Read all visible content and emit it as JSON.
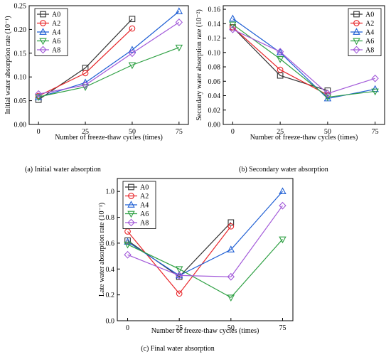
{
  "colors": {
    "A0": "#333333",
    "A2": "#e8262a",
    "A4": "#1f5fd4",
    "A6": "#2ea043",
    "A8": "#a259d9"
  },
  "chart_data": [
    {
      "type": "line",
      "caption": "(a) Initial water absorption",
      "xlabel": "Number of freeze-thaw cycles (times)",
      "ylabel": "Initial water absorption rate (10⁻¹)",
      "x": [
        0,
        25,
        50,
        75
      ],
      "xlim": [
        -5,
        80
      ],
      "ylim": [
        0,
        0.25
      ],
      "yticks": [
        0.0,
        0.05,
        0.1,
        0.15,
        0.2,
        0.25
      ],
      "ytick_labels": [
        "0.00",
        "0.05",
        "0.10",
        "0.15",
        "0.20",
        "0.25"
      ],
      "legend_position": "top-left",
      "series": [
        {
          "name": "A0",
          "values": [
            0.052,
            0.119,
            0.222,
            null
          ]
        },
        {
          "name": "A2",
          "values": [
            0.06,
            0.108,
            0.202,
            null
          ]
        },
        {
          "name": "A4",
          "values": [
            0.057,
            0.088,
            0.157,
            0.238
          ]
        },
        {
          "name": "A6",
          "values": [
            0.058,
            0.079,
            0.125,
            0.162
          ]
        },
        {
          "name": "A8",
          "values": [
            0.064,
            0.083,
            0.15,
            0.215
          ]
        }
      ]
    },
    {
      "type": "line",
      "caption": "(b) Secondary water absorption",
      "xlabel": "Number of freeze-thaw cycles (times)",
      "ylabel": "Secondary water absorption rate (10⁻²)",
      "x": [
        0,
        25,
        50,
        75
      ],
      "xlim": [
        -5,
        80
      ],
      "ylim": [
        0,
        0.165
      ],
      "yticks": [
        0.0,
        0.02,
        0.04,
        0.06,
        0.08,
        0.1,
        0.12,
        0.14,
        0.16
      ],
      "ytick_labels": [
        "0.00",
        "0.02",
        "0.04",
        "0.06",
        "0.08",
        "0.10",
        "0.12",
        "0.14",
        "0.16"
      ],
      "legend_position": "top-right",
      "series": [
        {
          "name": "A0",
          "values": [
            0.135,
            0.068,
            0.047,
            null
          ]
        },
        {
          "name": "A2",
          "values": [
            0.135,
            0.076,
            0.041,
            null
          ]
        },
        {
          "name": "A4",
          "values": [
            0.147,
            0.1,
            0.036,
            0.049
          ]
        },
        {
          "name": "A6",
          "values": [
            0.139,
            0.091,
            0.038,
            0.046
          ]
        },
        {
          "name": "A8",
          "values": [
            0.132,
            0.101,
            0.043,
            0.064
          ]
        }
      ]
    },
    {
      "type": "line",
      "caption": "(c) Final water absorption",
      "xlabel": "Number of freeze-thaw cycles (times)",
      "ylabel": "Late water absorption rate (10⁻¹)",
      "x": [
        0,
        25,
        50,
        75
      ],
      "xlim": [
        -5,
        80
      ],
      "ylim": [
        0,
        1.1
      ],
      "yticks": [
        0.0,
        0.2,
        0.4,
        0.6,
        0.8,
        1.0
      ],
      "ytick_labels": [
        "0.0",
        "0.2",
        "0.4",
        "0.6",
        "0.8",
        "1.0"
      ],
      "legend_position": "top-left",
      "series": [
        {
          "name": "A0",
          "values": [
            0.62,
            0.34,
            0.76,
            null
          ]
        },
        {
          "name": "A2",
          "values": [
            0.69,
            0.21,
            0.73,
            null
          ]
        },
        {
          "name": "A4",
          "values": [
            0.61,
            0.35,
            0.55,
            1.0
          ]
        },
        {
          "name": "A6",
          "values": [
            0.59,
            0.4,
            0.18,
            0.63
          ]
        },
        {
          "name": "A8",
          "values": [
            0.51,
            0.35,
            0.34,
            0.89
          ]
        }
      ]
    }
  ]
}
